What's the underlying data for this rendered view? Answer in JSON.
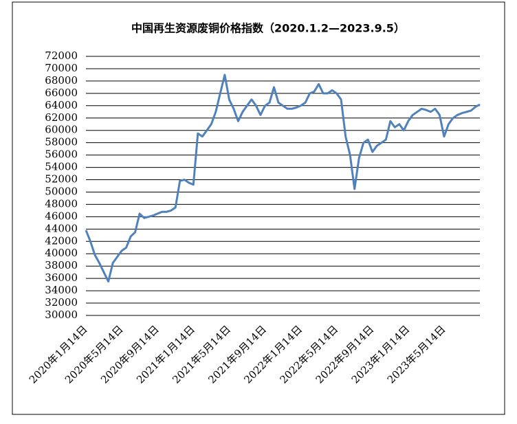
{
  "chart_data": {
    "type": "line",
    "title": "中国再生资源废铜价格指数（2020.1.2—2023.9.5）",
    "categories": [
      "2020年1月14日",
      null,
      null,
      null,
      null,
      null,
      null,
      null,
      "2020年5月14日",
      null,
      null,
      null,
      null,
      null,
      null,
      null,
      "2020年9月14日",
      null,
      null,
      null,
      null,
      null,
      null,
      null,
      "2021年1月14日",
      null,
      null,
      null,
      null,
      null,
      null,
      null,
      "2021年5月14日",
      null,
      null,
      null,
      null,
      null,
      null,
      null,
      "2021年9月14日",
      null,
      null,
      null,
      null,
      null,
      null,
      null,
      "2022年1月14日",
      null,
      null,
      null,
      null,
      null,
      null,
      null,
      "2022年5月14日",
      null,
      null,
      null,
      null,
      null,
      null,
      null,
      "2022年9月14日",
      null,
      null,
      null,
      null,
      null,
      null,
      null,
      "2023年1月14日",
      null,
      null,
      null,
      null,
      null,
      null,
      null,
      "2023年5月14日",
      null,
      null,
      null,
      null,
      null,
      null,
      null,
      null
    ],
    "series": [
      {
        "color": "#4f81bd",
        "values": [
          43800,
          42000,
          39800,
          38500,
          37000,
          35500,
          38500,
          39500,
          40500,
          41000,
          42800,
          43500,
          46500,
          45800,
          46000,
          46200,
          46500,
          46800,
          46800,
          47000,
          47500,
          51800,
          52000,
          51500,
          51200,
          59500,
          59000,
          60000,
          61000,
          63000,
          66000,
          69000,
          65000,
          63500,
          61500,
          63000,
          64000,
          65000,
          64000,
          62500,
          64000,
          64500,
          67000,
          64500,
          64000,
          63500,
          63500,
          63700,
          64000,
          64500,
          66000,
          66300,
          67500,
          66000,
          66000,
          66500,
          66000,
          65000,
          59000,
          56000,
          50500,
          55500,
          58000,
          58500,
          56500,
          57500,
          58000,
          58500,
          61500,
          60500,
          61000,
          60000,
          61500,
          62500,
          63000,
          63500,
          63300,
          63000,
          63500,
          62500,
          59000,
          61000,
          62000,
          62500,
          62800,
          63000,
          63200,
          63800,
          64200
        ]
      }
    ],
    "ylim": [
      30000,
      72000
    ],
    "yticks": [
      30000,
      32000,
      34000,
      36000,
      38000,
      40000,
      42000,
      44000,
      46000,
      48000,
      50000,
      52000,
      54000,
      56000,
      58000,
      60000,
      62000,
      64000,
      66000,
      68000,
      70000,
      72000
    ],
    "grid": true
  }
}
